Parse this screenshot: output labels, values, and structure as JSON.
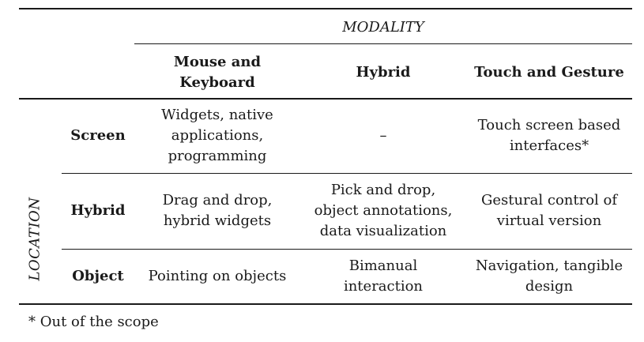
{
  "table": {
    "modality_header": "MODALITY",
    "location_header": "LOCATION",
    "columns": [
      "Mouse and\nKeyboard",
      "Hybrid",
      "Touch and Gesture"
    ],
    "rows": [
      {
        "label": "Screen",
        "cells": [
          "Widgets, native\napplications,\nprogramming",
          "–",
          "Touch screen based\ninterfaces*"
        ]
      },
      {
        "label": "Hybrid",
        "cells": [
          "Drag and drop,\nhybrid widgets",
          "Pick and drop,\nobject annotations,\ndata visualization",
          "Gestural control of\nvirtual version"
        ]
      },
      {
        "label": "Object",
        "cells": [
          "Pointing on objects",
          "Bimanual\ninteraction",
          "Navigation, tangible\ndesign"
        ]
      }
    ]
  },
  "footnote": "* Out of the scope"
}
